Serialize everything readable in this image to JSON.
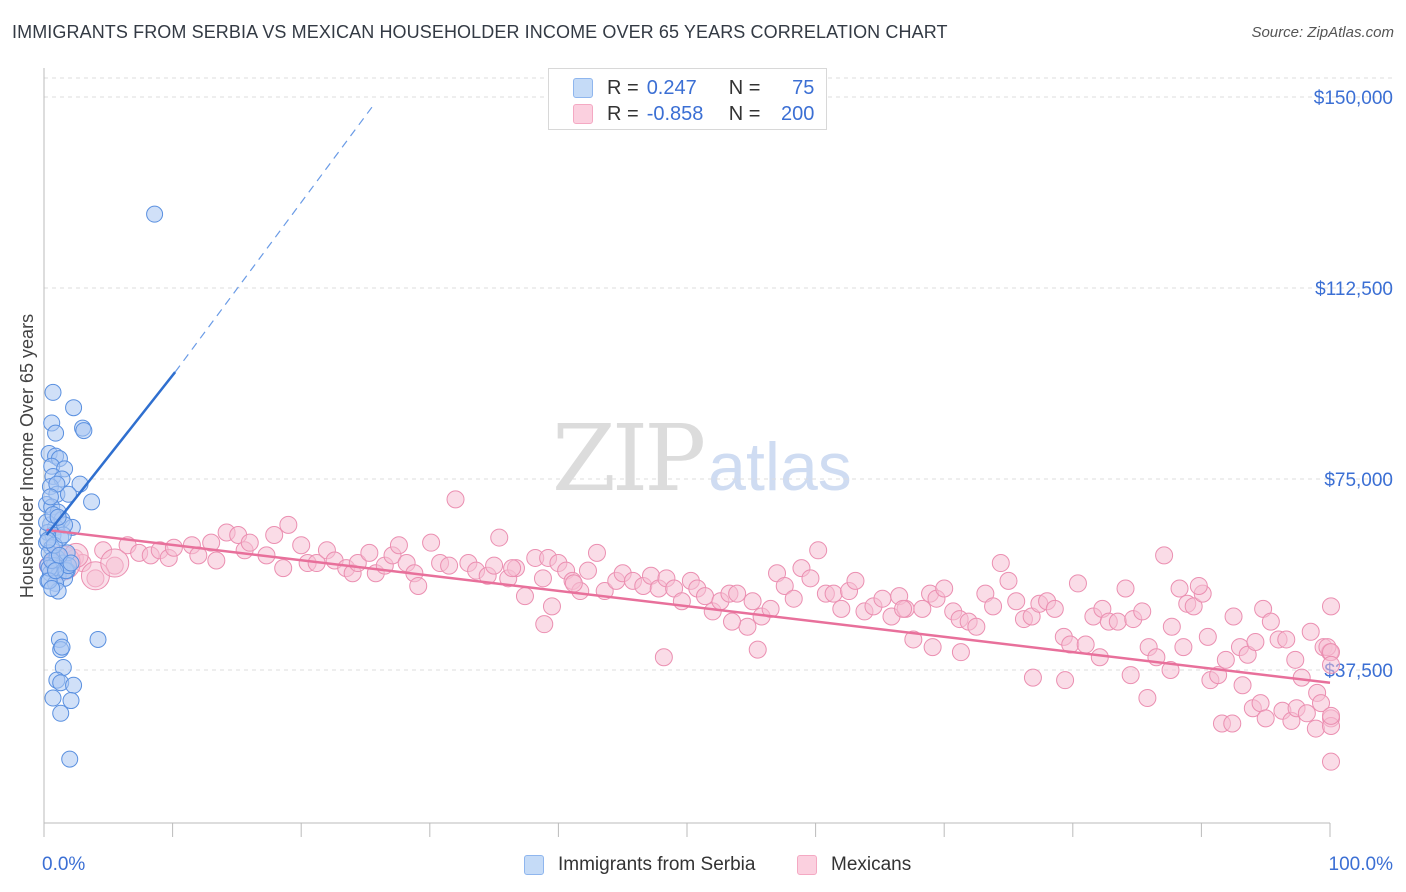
{
  "title": "IMMIGRANTS FROM SERBIA VS MEXICAN HOUSEHOLDER INCOME OVER 65 YEARS CORRELATION CHART",
  "source": "Source: ZipAtlas.com",
  "watermark": {
    "zip": "ZIP",
    "atlas": "atlas"
  },
  "legend_top": [
    {
      "r_label": "R =",
      "r_value": "0.247",
      "n_label": "N =",
      "n_value": "75",
      "color": "#8fb6ee"
    },
    {
      "r_label": "R =",
      "r_value": "-0.858",
      "n_label": "N =",
      "n_value": "200",
      "color": "#f4a9c3"
    }
  ],
  "legend_bottom": [
    {
      "label": "Immigrants from Serbia",
      "color": "#8fb6ee"
    },
    {
      "label": "Mexicans",
      "color": "#f4a9c3"
    }
  ],
  "colors": {
    "serbia": "#4a86e0",
    "serbia_fill": "#a9c7f2",
    "mexicans": "#e8709b",
    "mexicans_fill": "#f6bfd3",
    "tick_text": "#3b6fd4",
    "grid": "#dddddd"
  },
  "chart_data": {
    "type": "scatter",
    "title": "IMMIGRANTS FROM SERBIA VS MEXICAN HOUSEHOLDER INCOME OVER 65 YEARS CORRELATION CHART",
    "xlabel": "",
    "ylabel": "Householder Income Over 65 years",
    "xlim": [
      0,
      100
    ],
    "ylim": [
      0,
      155000
    ],
    "x_tick_labels": [
      "0.0%",
      "100.0%"
    ],
    "y_ticks": [
      37500,
      75000,
      112500,
      150000
    ],
    "y_tick_labels": [
      "$37,500",
      "$75,000",
      "$112,500",
      "$150,000"
    ],
    "grid": true,
    "legend_position": "top-center",
    "series": [
      {
        "name": "Immigrants from Serbia",
        "r": 0.247,
        "n": 75,
        "trend": {
          "x0": 0.2,
          "y0": 64000,
          "x1": 10.2,
          "y1": 96000,
          "dash_to_x": 25.5,
          "dash_to_y": 148000
        },
        "points": [
          [
            8.6,
            127000
          ],
          [
            0.7,
            92000
          ],
          [
            2.3,
            89000
          ],
          [
            0.6,
            86000
          ],
          [
            3.0,
            85000
          ],
          [
            0.9,
            84000
          ],
          [
            3.1,
            84500
          ],
          [
            0.4,
            80000
          ],
          [
            0.9,
            79500
          ],
          [
            1.2,
            79000
          ],
          [
            0.6,
            77500
          ],
          [
            1.6,
            77000
          ],
          [
            0.7,
            75500
          ],
          [
            1.4,
            75000
          ],
          [
            2.8,
            74000
          ],
          [
            0.5,
            73500
          ],
          [
            1.0,
            72000
          ],
          [
            1.9,
            72000
          ],
          [
            3.7,
            70500
          ],
          [
            0.2,
            70000
          ],
          [
            0.6,
            69500
          ],
          [
            1.1,
            68500
          ],
          [
            1.4,
            67000
          ],
          [
            0.5,
            66000
          ],
          [
            0.9,
            65500
          ],
          [
            2.2,
            65500
          ],
          [
            0.3,
            64500
          ],
          [
            0.7,
            64000
          ],
          [
            1.3,
            63500
          ],
          [
            0.2,
            62500
          ],
          [
            0.6,
            61500
          ],
          [
            0.4,
            60500
          ],
          [
            1.0,
            59500
          ],
          [
            1.5,
            58500
          ],
          [
            0.3,
            58000
          ],
          [
            0.8,
            58000
          ],
          [
            1.2,
            57500
          ],
          [
            1.8,
            57000
          ],
          [
            0.5,
            56500
          ],
          [
            1.1,
            56000
          ],
          [
            1.6,
            55500
          ],
          [
            0.3,
            55000
          ],
          [
            0.9,
            54500
          ],
          [
            1.1,
            53000
          ],
          [
            1.2,
            43500
          ],
          [
            1.3,
            41500
          ],
          [
            1.4,
            42000
          ],
          [
            4.2,
            43500
          ],
          [
            1.5,
            38000
          ],
          [
            1.0,
            35500
          ],
          [
            1.3,
            35000
          ],
          [
            2.3,
            34500
          ],
          [
            0.7,
            32000
          ],
          [
            2.1,
            31500
          ],
          [
            1.3,
            29000
          ],
          [
            2.0,
            20000
          ],
          [
            0.4,
            57500
          ],
          [
            0.6,
            59000
          ],
          [
            1.7,
            57000
          ],
          [
            0.2,
            66500
          ],
          [
            1.0,
            74000
          ],
          [
            0.5,
            71500
          ],
          [
            1.8,
            60500
          ],
          [
            0.8,
            62000
          ],
          [
            1.9,
            58000
          ],
          [
            0.3,
            63000
          ],
          [
            0.7,
            68000
          ],
          [
            1.5,
            64000
          ],
          [
            1.2,
            60000
          ],
          [
            0.4,
            55000
          ],
          [
            1.6,
            66000
          ],
          [
            2.1,
            58500
          ],
          [
            0.9,
            57000
          ],
          [
            0.6,
            53500
          ],
          [
            1.1,
            67500
          ]
        ]
      },
      {
        "name": "Mexicans",
        "r": -0.858,
        "n": 200,
        "trend": {
          "x0": 0.2,
          "y0": 65000,
          "x1": 100,
          "y1": 35000
        },
        "points": [
          [
            0.3,
            58000
          ],
          [
            0.7,
            59000
          ],
          [
            1.0,
            60000
          ],
          [
            1.6,
            57500
          ],
          [
            2.4,
            59500
          ],
          [
            3.0,
            58500
          ],
          [
            4.0,
            55500
          ],
          [
            4.6,
            61000
          ],
          [
            5.5,
            58000
          ],
          [
            6.5,
            62000
          ],
          [
            7.4,
            60500
          ],
          [
            8.3,
            60000
          ],
          [
            9.0,
            61000
          ],
          [
            9.7,
            59500
          ],
          [
            10.1,
            61500
          ],
          [
            11.5,
            62000
          ],
          [
            12.0,
            60000
          ],
          [
            13.0,
            62500
          ],
          [
            13.4,
            59000
          ],
          [
            14.2,
            64500
          ],
          [
            15.1,
            64000
          ],
          [
            15.6,
            61000
          ],
          [
            16.0,
            62500
          ],
          [
            17.3,
            60000
          ],
          [
            17.9,
            64000
          ],
          [
            18.6,
            57500
          ],
          [
            19.0,
            66000
          ],
          [
            20.0,
            62000
          ],
          [
            20.5,
            58500
          ],
          [
            21.2,
            58500
          ],
          [
            22.0,
            61000
          ],
          [
            22.6,
            59000
          ],
          [
            23.5,
            57500
          ],
          [
            24.0,
            56500
          ],
          [
            24.4,
            58500
          ],
          [
            25.3,
            60500
          ],
          [
            25.8,
            56500
          ],
          [
            26.5,
            58000
          ],
          [
            27.1,
            60000
          ],
          [
            27.6,
            62000
          ],
          [
            28.2,
            58500
          ],
          [
            28.8,
            56500
          ],
          [
            29.1,
            54000
          ],
          [
            30.1,
            62500
          ],
          [
            30.8,
            58500
          ],
          [
            31.5,
            58000
          ],
          [
            32.0,
            71000
          ],
          [
            33.0,
            58500
          ],
          [
            33.6,
            57000
          ],
          [
            34.5,
            56000
          ],
          [
            35.0,
            58000
          ],
          [
            35.4,
            63500
          ],
          [
            36.1,
            55500
          ],
          [
            36.7,
            57500
          ],
          [
            37.4,
            52000
          ],
          [
            38.2,
            59500
          ],
          [
            38.8,
            55500
          ],
          [
            39.2,
            59500
          ],
          [
            40.0,
            58500
          ],
          [
            40.6,
            57000
          ],
          [
            41.1,
            55000
          ],
          [
            41.7,
            53000
          ],
          [
            42.3,
            57000
          ],
          [
            43.0,
            60500
          ],
          [
            43.6,
            53000
          ],
          [
            44.5,
            55000
          ],
          [
            45.0,
            56500
          ],
          [
            45.8,
            55000
          ],
          [
            46.6,
            54000
          ],
          [
            47.2,
            56000
          ],
          [
            47.8,
            53500
          ],
          [
            48.4,
            55500
          ],
          [
            49.0,
            53500
          ],
          [
            49.6,
            51000
          ],
          [
            50.3,
            55000
          ],
          [
            50.8,
            53500
          ],
          [
            51.4,
            52000
          ],
          [
            52.0,
            49000
          ],
          [
            52.6,
            51000
          ],
          [
            53.3,
            52500
          ],
          [
            53.9,
            52500
          ],
          [
            54.7,
            46000
          ],
          [
            55.1,
            51000
          ],
          [
            55.8,
            48000
          ],
          [
            56.5,
            49500
          ],
          [
            57.0,
            56500
          ],
          [
            57.6,
            54000
          ],
          [
            58.3,
            51500
          ],
          [
            58.9,
            57500
          ],
          [
            59.6,
            55500
          ],
          [
            60.2,
            61000
          ],
          [
            60.8,
            52500
          ],
          [
            61.4,
            52500
          ],
          [
            62.0,
            49500
          ],
          [
            62.6,
            53000
          ],
          [
            63.1,
            55000
          ],
          [
            63.8,
            49000
          ],
          [
            64.5,
            50000
          ],
          [
            65.2,
            51500
          ],
          [
            65.9,
            48000
          ],
          [
            66.5,
            52000
          ],
          [
            67.0,
            49500
          ],
          [
            67.6,
            43500
          ],
          [
            68.3,
            49500
          ],
          [
            68.9,
            52500
          ],
          [
            69.4,
            51500
          ],
          [
            70.0,
            53500
          ],
          [
            70.7,
            49000
          ],
          [
            71.2,
            47500
          ],
          [
            71.9,
            47000
          ],
          [
            72.5,
            46000
          ],
          [
            73.2,
            52500
          ],
          [
            73.8,
            50000
          ],
          [
            74.4,
            58500
          ],
          [
            75.0,
            55000
          ],
          [
            75.6,
            51000
          ],
          [
            76.2,
            47500
          ],
          [
            76.8,
            48000
          ],
          [
            77.4,
            50500
          ],
          [
            78.0,
            51000
          ],
          [
            78.6,
            49500
          ],
          [
            79.3,
            44000
          ],
          [
            79.8,
            42500
          ],
          [
            80.4,
            54500
          ],
          [
            81.0,
            42500
          ],
          [
            81.6,
            48000
          ],
          [
            82.3,
            49500
          ],
          [
            82.8,
            47000
          ],
          [
            83.5,
            47000
          ],
          [
            84.1,
            53500
          ],
          [
            84.7,
            47500
          ],
          [
            85.4,
            49000
          ],
          [
            85.9,
            42000
          ],
          [
            86.5,
            40000
          ],
          [
            87.1,
            60000
          ],
          [
            87.7,
            46000
          ],
          [
            88.3,
            53500
          ],
          [
            88.9,
            50500
          ],
          [
            89.4,
            50000
          ],
          [
            90.1,
            52500
          ],
          [
            90.7,
            35500
          ],
          [
            91.3,
            36500
          ],
          [
            91.9,
            39500
          ],
          [
            92.5,
            48000
          ],
          [
            93.0,
            42000
          ],
          [
            93.6,
            40500
          ],
          [
            94.2,
            43000
          ],
          [
            94.8,
            49500
          ],
          [
            95.4,
            47000
          ],
          [
            96.0,
            43500
          ],
          [
            96.6,
            43500
          ],
          [
            97.3,
            39500
          ],
          [
            97.8,
            36000
          ],
          [
            98.5,
            45000
          ],
          [
            99.0,
            33000
          ],
          [
            99.5,
            42000
          ],
          [
            100.0,
            41000
          ],
          [
            36.4,
            57500
          ],
          [
            38.9,
            46500
          ],
          [
            39.5,
            50000
          ],
          [
            41.2,
            54500
          ],
          [
            48.2,
            40000
          ],
          [
            53.5,
            47000
          ],
          [
            55.5,
            41500
          ],
          [
            66.8,
            49500
          ],
          [
            69.1,
            42000
          ],
          [
            71.3,
            41000
          ],
          [
            76.9,
            36000
          ],
          [
            79.4,
            35500
          ],
          [
            82.1,
            40000
          ],
          [
            84.5,
            36500
          ],
          [
            85.8,
            32000
          ],
          [
            87.6,
            37500
          ],
          [
            88.6,
            42000
          ],
          [
            89.8,
            54000
          ],
          [
            90.5,
            44000
          ],
          [
            91.6,
            27000
          ],
          [
            92.4,
            27000
          ],
          [
            93.2,
            34500
          ],
          [
            94.0,
            30000
          ],
          [
            94.6,
            31000
          ],
          [
            95.0,
            28000
          ],
          [
            96.3,
            29500
          ],
          [
            97.0,
            27500
          ],
          [
            97.4,
            30000
          ],
          [
            98.2,
            29000
          ],
          [
            98.9,
            26000
          ],
          [
            99.3,
            31000
          ],
          [
            99.8,
            42000
          ],
          [
            100.3,
            50000
          ],
          [
            100.8,
            28000
          ],
          [
            101.4,
            41000
          ],
          [
            102.0,
            26500
          ],
          [
            102.5,
            38500
          ],
          [
            103.0,
            19500
          ],
          [
            103.4,
            28500
          ]
        ]
      }
    ]
  },
  "axes": {
    "y_label": "Householder Income Over 65 years",
    "x_left_label": "0.0%",
    "x_right_label": "100.0%"
  }
}
